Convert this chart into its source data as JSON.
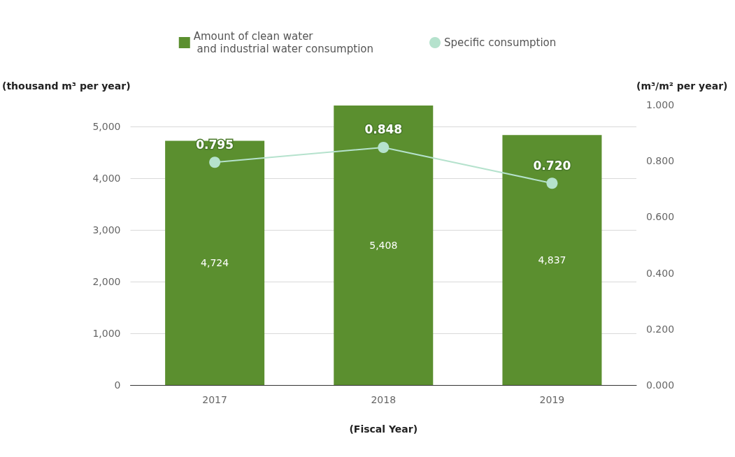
{
  "chart_data": {
    "type": "bar",
    "categories": [
      "2017",
      "2018",
      "2019"
    ],
    "xlabel": "(Fiscal Year)",
    "ylabel": "(thousand m³ per year)",
    "y2label": "(m³/m² per year)",
    "series": [
      {
        "name": "Amount of clean water\n and industrial water consumption",
        "color": "#5b8f2f",
        "values": [
          4724,
          5408,
          4837
        ],
        "value_labels": [
          "4,724",
          "5,408",
          "4,837"
        ]
      },
      {
        "name": "Specific consumption",
        "type": "line",
        "axis": "y2",
        "color": "#b5e2cd",
        "marker": "circle",
        "values": [
          0.795,
          0.848,
          0.72
        ],
        "value_labels": [
          "0.795",
          "0.848",
          "0.720"
        ]
      }
    ],
    "ylim": [
      0,
      5420
    ],
    "yticks": [
      {
        "value": 0,
        "label": "0"
      },
      {
        "value": 1000,
        "label": "1,000"
      },
      {
        "value": 2000,
        "label": "2,000"
      },
      {
        "value": 3000,
        "label": "3,000"
      },
      {
        "value": 4000,
        "label": "4,000"
      },
      {
        "value": 5000,
        "label": "5,000"
      }
    ],
    "y2lim": [
      0,
      1
    ],
    "y2ticks": [
      {
        "value": 0,
        "label": "0.000"
      },
      {
        "value": 0.2,
        "label": "0.200"
      },
      {
        "value": 0.4,
        "label": "0.400"
      },
      {
        "value": 0.6,
        "label": "0.600"
      },
      {
        "value": 0.8,
        "label": "0.800"
      },
      {
        "value": 1,
        "label": "1.000"
      }
    ],
    "grid": "y",
    "legend": "top"
  }
}
